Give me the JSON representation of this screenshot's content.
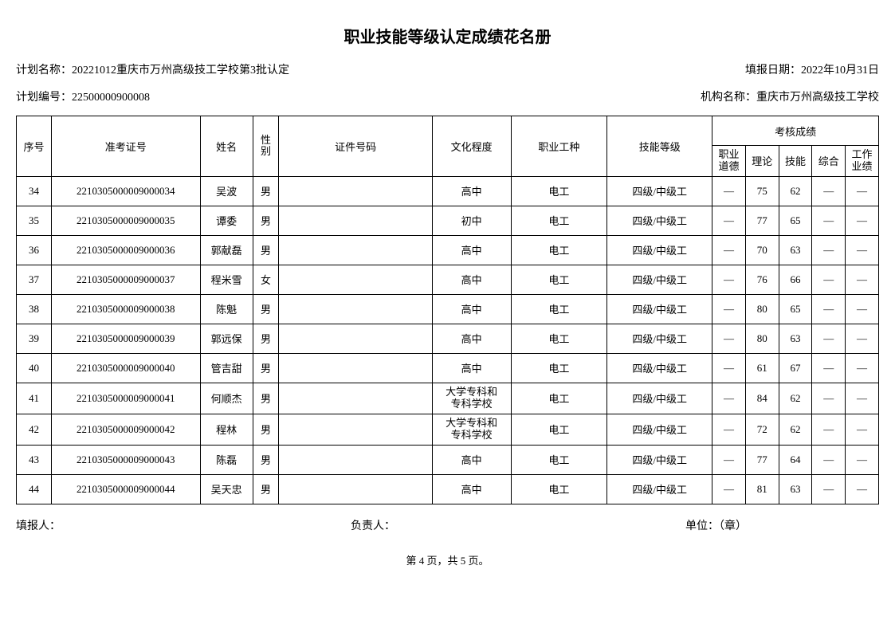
{
  "title": "职业技能等级认定成绩花名册",
  "meta": {
    "plan_name_label": "计划名称：",
    "plan_name": "20221012重庆市万州高级技工学校第3批认定",
    "report_date_label": "填报日期：",
    "report_date": "2022年10月31日",
    "plan_no_label": "计划编号：",
    "plan_no": "22500000900008",
    "org_label": "机构名称：",
    "org": "重庆市万州高级技工学校"
  },
  "columns": {
    "seq": "序号",
    "ticket": "准考证号",
    "name": "姓名",
    "sex": "性\n别",
    "idno": "证件号码",
    "edu": "文化程度",
    "job": "职业工种",
    "level": "技能等级",
    "score_group": "考核成绩",
    "s_ethic": "职业\n道德",
    "s_theory": "理论",
    "s_skill": "技能",
    "s_comp": "综合",
    "s_work": "工作\n业绩"
  },
  "rows": [
    {
      "seq": "34",
      "ticket": "2210305000009000034",
      "name": "吴波",
      "sex": "男",
      "idno": "",
      "edu": "高中",
      "job": "电工",
      "level": "四级/中级工",
      "s1": "—",
      "s2": "75",
      "s3": "62",
      "s4": "—",
      "s5": "—"
    },
    {
      "seq": "35",
      "ticket": "2210305000009000035",
      "name": "谭委",
      "sex": "男",
      "idno": "",
      "edu": "初中",
      "job": "电工",
      "level": "四级/中级工",
      "s1": "—",
      "s2": "77",
      "s3": "65",
      "s4": "—",
      "s5": "—"
    },
    {
      "seq": "36",
      "ticket": "2210305000009000036",
      "name": "郭献磊",
      "sex": "男",
      "idno": "",
      "edu": "高中",
      "job": "电工",
      "level": "四级/中级工",
      "s1": "—",
      "s2": "70",
      "s3": "63",
      "s4": "—",
      "s5": "—"
    },
    {
      "seq": "37",
      "ticket": "2210305000009000037",
      "name": "程米雪",
      "sex": "女",
      "idno": "",
      "edu": "高中",
      "job": "电工",
      "level": "四级/中级工",
      "s1": "—",
      "s2": "76",
      "s3": "66",
      "s4": "—",
      "s5": "—"
    },
    {
      "seq": "38",
      "ticket": "2210305000009000038",
      "name": "陈魁",
      "sex": "男",
      "idno": "",
      "edu": "高中",
      "job": "电工",
      "level": "四级/中级工",
      "s1": "—",
      "s2": "80",
      "s3": "65",
      "s4": "—",
      "s5": "—"
    },
    {
      "seq": "39",
      "ticket": "2210305000009000039",
      "name": "郭远保",
      "sex": "男",
      "idno": "",
      "edu": "高中",
      "job": "电工",
      "level": "四级/中级工",
      "s1": "—",
      "s2": "80",
      "s3": "63",
      "s4": "—",
      "s5": "—"
    },
    {
      "seq": "40",
      "ticket": "2210305000009000040",
      "name": "管吉甜",
      "sex": "男",
      "idno": "",
      "edu": "高中",
      "job": "电工",
      "level": "四级/中级工",
      "s1": "—",
      "s2": "61",
      "s3": "67",
      "s4": "—",
      "s5": "—"
    },
    {
      "seq": "41",
      "ticket": "2210305000009000041",
      "name": "何顺杰",
      "sex": "男",
      "idno": "",
      "edu": "大学专科和\n专科学校",
      "job": "电工",
      "level": "四级/中级工",
      "s1": "—",
      "s2": "84",
      "s3": "62",
      "s4": "—",
      "s5": "—"
    },
    {
      "seq": "42",
      "ticket": "2210305000009000042",
      "name": "程林",
      "sex": "男",
      "idno": "",
      "edu": "大学专科和\n专科学校",
      "job": "电工",
      "level": "四级/中级工",
      "s1": "—",
      "s2": "72",
      "s3": "62",
      "s4": "—",
      "s5": "—"
    },
    {
      "seq": "43",
      "ticket": "2210305000009000043",
      "name": "陈磊",
      "sex": "男",
      "idno": "",
      "edu": "高中",
      "job": "电工",
      "level": "四级/中级工",
      "s1": "—",
      "s2": "77",
      "s3": "64",
      "s4": "—",
      "s5": "—"
    },
    {
      "seq": "44",
      "ticket": "2210305000009000044",
      "name": "吴天忠",
      "sex": "男",
      "idno": "",
      "edu": "高中",
      "job": "电工",
      "level": "四级/中级工",
      "s1": "—",
      "s2": "81",
      "s3": "63",
      "s4": "—",
      "s5": "—"
    }
  ],
  "footer": {
    "reporter": "填报人：",
    "principal": "负责人：",
    "unit": "单位：（章）"
  },
  "pager": "第 4 页，共 5 页。",
  "style": {
    "background_color": "#ffffff",
    "border_color": "#000000",
    "text_color": "#000000",
    "title_fontsize": 20,
    "body_fontsize": 13,
    "meta_fontsize": 14
  }
}
